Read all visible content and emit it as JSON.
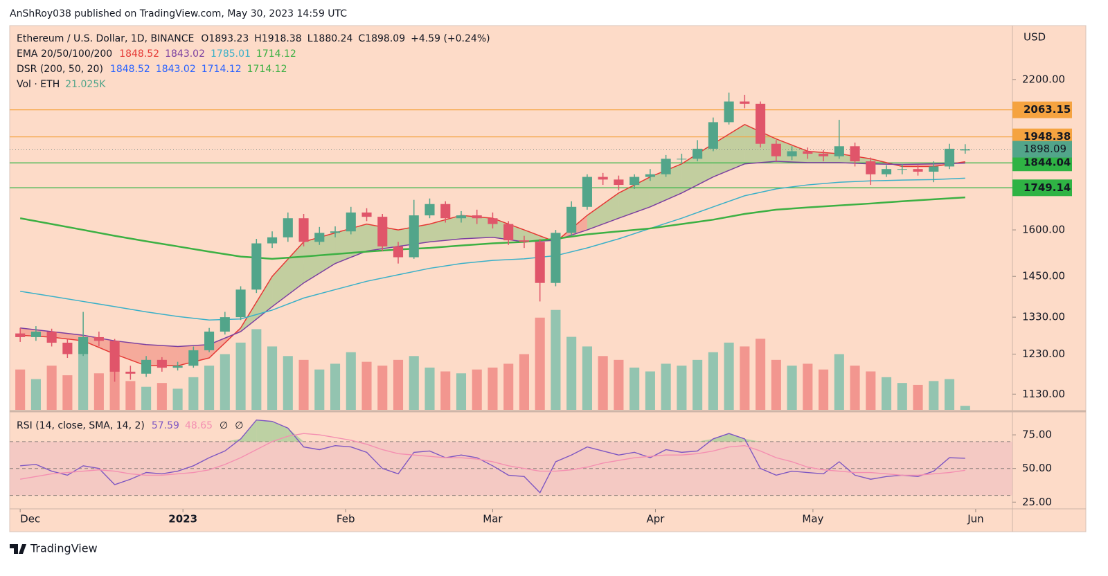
{
  "header": {
    "publisher": "AnShRoy038 published on TradingView.com, May 30, 2023 14:59 UTC",
    "brand": "TradingView"
  },
  "chart_data": {
    "type": "candlestick",
    "symbol": "Ethereum / U.S. Dollar, 1D, BINANCE",
    "ohlc_labels": [
      "O",
      "H",
      "L",
      "C"
    ],
    "change": "+4.59 (+0.24%)",
    "currency": "USD",
    "log_scale": true,
    "grid": false,
    "up_color": "#52a58a",
    "down_color": "#e0556a",
    "x": [
      0,
      3,
      6,
      9,
      12,
      15,
      18,
      21,
      24,
      27,
      30,
      33,
      36,
      39,
      42,
      45,
      48,
      51,
      54,
      57,
      60,
      63,
      66,
      69,
      72,
      75,
      78,
      81,
      84,
      87,
      90,
      93,
      96,
      99,
      102,
      105,
      108,
      111,
      114,
      117,
      120,
      123,
      126,
      129,
      132,
      135,
      138,
      141,
      144,
      147,
      150,
      153,
      156,
      159,
      162,
      165,
      168,
      171,
      174,
      177,
      180
    ],
    "open": [
      1285,
      1275,
      1290,
      1260,
      1230,
      1275,
      1265,
      1185,
      1180,
      1215,
      1195,
      1200,
      1240,
      1290,
      1330,
      1410,
      1555,
      1575,
      1640,
      1560,
      1590,
      1595,
      1660,
      1645,
      1545,
      1510,
      1650,
      1690,
      1640,
      1650,
      1640,
      1620,
      1565,
      1560,
      1430,
      1590,
      1680,
      1790,
      1780,
      1760,
      1790,
      1800,
      1860,
      1860,
      1900,
      2010,
      2100,
      2090,
      1920,
      1870,
      1890,
      1880,
      1870,
      1910,
      1850,
      1800,
      1820,
      1820,
      1810,
      1830,
      1893.23
    ],
    "high": [
      1300,
      1305,
      1298,
      1270,
      1345,
      1290,
      1270,
      1200,
      1225,
      1222,
      1210,
      1250,
      1300,
      1345,
      1420,
      1570,
      1595,
      1660,
      1655,
      1610,
      1612,
      1680,
      1675,
      1655,
      1560,
      1705,
      1710,
      1700,
      1665,
      1670,
      1660,
      1630,
      1580,
      1570,
      1600,
      1700,
      1800,
      1805,
      1795,
      1800,
      1820,
      1875,
      1880,
      1935,
      2030,
      2140,
      2130,
      2100,
      1935,
      1910,
      1905,
      1895,
      2020,
      1925,
      1865,
      1835,
      1840,
      1835,
      1850,
      1920,
      1918.38
    ],
    "low": [
      1262,
      1265,
      1250,
      1220,
      1225,
      1250,
      1160,
      1165,
      1172,
      1185,
      1188,
      1195,
      1235,
      1282,
      1322,
      1400,
      1540,
      1560,
      1545,
      1550,
      1575,
      1585,
      1630,
      1530,
      1490,
      1505,
      1640,
      1625,
      1625,
      1620,
      1605,
      1550,
      1540,
      1375,
      1420,
      1580,
      1670,
      1760,
      1740,
      1745,
      1775,
      1790,
      1840,
      1850,
      1890,
      2000,
      2070,
      1905,
      1850,
      1855,
      1860,
      1850,
      1860,
      1830,
      1760,
      1790,
      1800,
      1795,
      1770,
      1820,
      1880.24
    ],
    "close": [
      1275,
      1290,
      1260,
      1230,
      1275,
      1265,
      1185,
      1180,
      1215,
      1195,
      1200,
      1240,
      1290,
      1330,
      1410,
      1555,
      1575,
      1640,
      1560,
      1590,
      1595,
      1660,
      1645,
      1545,
      1510,
      1650,
      1690,
      1640,
      1650,
      1640,
      1620,
      1565,
      1560,
      1430,
      1590,
      1680,
      1790,
      1780,
      1760,
      1790,
      1800,
      1860,
      1860,
      1900,
      2010,
      2100,
      2090,
      1920,
      1870,
      1890,
      1880,
      1870,
      1910,
      1850,
      1800,
      1820,
      1820,
      1810,
      1830,
      1900,
      1898.09
    ],
    "volume": {
      "label": "Vol · ETH",
      "last_label": "21.025K",
      "up_color": "#93c4b0",
      "down_color": "#f2968f",
      "values": [
        210,
        160,
        230,
        180,
        290,
        190,
        260,
        150,
        120,
        140,
        110,
        170,
        230,
        290,
        350,
        420,
        330,
        280,
        260,
        210,
        240,
        300,
        250,
        230,
        260,
        280,
        220,
        200,
        190,
        210,
        220,
        240,
        290,
        480,
        520,
        380,
        330,
        280,
        260,
        220,
        200,
        240,
        230,
        260,
        300,
        350,
        330,
        370,
        260,
        230,
        240,
        210,
        290,
        230,
        200,
        170,
        140,
        130,
        150,
        160,
        21.025
      ],
      "ylim": [
        0,
        2000
      ]
    },
    "xlim": [
      -2,
      189
    ],
    "xticks": [
      {
        "value": 0,
        "label": "Dec"
      },
      {
        "value": 31,
        "label": "2023"
      },
      {
        "value": 62,
        "label": "Feb"
      },
      {
        "value": 90,
        "label": "Mar"
      },
      {
        "value": 121,
        "label": "Apr"
      },
      {
        "value": 151,
        "label": "May"
      },
      {
        "value": 182,
        "label": "Jun"
      }
    ],
    "ylim": [
      1093,
      2466
    ],
    "yticks": [
      {
        "value": 2200,
        "label": "2200.00"
      },
      {
        "value": 1600,
        "label": "1600.00"
      },
      {
        "value": 1450,
        "label": "1450.00"
      },
      {
        "value": 1330,
        "label": "1330.00"
      },
      {
        "value": 1230,
        "label": "1230.00"
      },
      {
        "value": 1130,
        "label": "1130.00"
      }
    ],
    "levels": [
      {
        "value": 2063.15,
        "color": "#f5a340"
      },
      {
        "value": 1948.38,
        "color": "#f5a340"
      },
      {
        "value": 1844.04,
        "color": "#2fb344"
      },
      {
        "value": 1749.14,
        "color": "#2fb344"
      }
    ],
    "ema": {
      "label": "EMA 20/50/100/200",
      "x": [
        0,
        6,
        12,
        18,
        24,
        30,
        36,
        42,
        48,
        54,
        60,
        66,
        72,
        78,
        84,
        90,
        96,
        102,
        108,
        114,
        120,
        126,
        132,
        138,
        144,
        150,
        156,
        162,
        168,
        174,
        180
      ],
      "series": [
        {
          "color": "#e53935",
          "values": [
            1280,
            1275,
            1265,
            1230,
            1200,
            1200,
            1220,
            1300,
            1450,
            1560,
            1590,
            1620,
            1600,
            1620,
            1650,
            1640,
            1600,
            1560,
            1650,
            1730,
            1790,
            1840,
            1920,
            2000,
            1940,
            1890,
            1880,
            1860,
            1830,
            1830,
            1848.52
          ]
        },
        {
          "color": "#7b3fa0",
          "values": [
            1300,
            1290,
            1280,
            1265,
            1255,
            1250,
            1255,
            1290,
            1360,
            1430,
            1490,
            1530,
            1545,
            1560,
            1570,
            1575,
            1560,
            1565,
            1600,
            1640,
            1680,
            1730,
            1790,
            1840,
            1850,
            1845,
            1845,
            1840,
            1838,
            1840,
            1843.02
          ]
        },
        {
          "color": "#3ab0c8",
          "values": [
            1405,
            1390,
            1375,
            1360,
            1345,
            1332,
            1322,
            1325,
            1350,
            1385,
            1410,
            1435,
            1455,
            1475,
            1490,
            1500,
            1505,
            1515,
            1540,
            1570,
            1605,
            1640,
            1680,
            1720,
            1745,
            1760,
            1770,
            1775,
            1778,
            1780,
            1785.01
          ]
        },
        {
          "color": "#3cb043",
          "values": [
            1640,
            1620,
            1600,
            1580,
            1562,
            1545,
            1528,
            1512,
            1505,
            1512,
            1520,
            1528,
            1535,
            1540,
            1548,
            1555,
            1560,
            1570,
            1585,
            1595,
            1605,
            1620,
            1635,
            1655,
            1670,
            1678,
            1685,
            1692,
            1700,
            1707,
            1714.12
          ]
        }
      ]
    },
    "dsr": {
      "label": "DSR (200, 50, 20)",
      "up_color": "#3cb043",
      "down_color": "#e53935",
      "values": [
        1848.52,
        1843.02,
        1714.12,
        1714.12
      ],
      "colors": [
        "#2962ff",
        "#2962ff",
        "#2962ff",
        "#3cb043"
      ]
    },
    "rsi": {
      "label": "RSI (14, close, SMA, 14, 2)",
      "na_marks": [
        "∅",
        "∅"
      ],
      "ylim": [
        20,
        91
      ],
      "yticks": [
        {
          "value": 75,
          "label": "75.00"
        },
        {
          "value": 50,
          "label": "50.00"
        },
        {
          "value": 25,
          "label": "25.00"
        }
      ],
      "bands": [
        30,
        50,
        70
      ],
      "band_color": "#efbcc0",
      "series": [
        {
          "color": "#7e57c2",
          "values": [
            52,
            53,
            48,
            45,
            52,
            50,
            38,
            42,
            47,
            46,
            48,
            52,
            58,
            63,
            72,
            86,
            85,
            80,
            66,
            64,
            67,
            66,
            62,
            50,
            46,
            62,
            63,
            58,
            60,
            58,
            52,
            45,
            44,
            32,
            55,
            60,
            66,
            63,
            60,
            62,
            58,
            64,
            62,
            63,
            72,
            76,
            72,
            50,
            45,
            48,
            47,
            46,
            55,
            45,
            42,
            44,
            45,
            44,
            48,
            58,
            57.59
          ]
        },
        {
          "color": "#f48fb1",
          "values": [
            42,
            44,
            46,
            47,
            48,
            49,
            48,
            46,
            45,
            45,
            46,
            47,
            49,
            53,
            58,
            64,
            70,
            74,
            76,
            75,
            73,
            71,
            68,
            64,
            61,
            60,
            59,
            58,
            58,
            57,
            55,
            52,
            50,
            48,
            48,
            49,
            51,
            54,
            56,
            58,
            59,
            60,
            60,
            61,
            63,
            66,
            67,
            63,
            58,
            55,
            51,
            49,
            48,
            47,
            47,
            46,
            45,
            45,
            46,
            47,
            48.65
          ]
        }
      ]
    }
  }
}
